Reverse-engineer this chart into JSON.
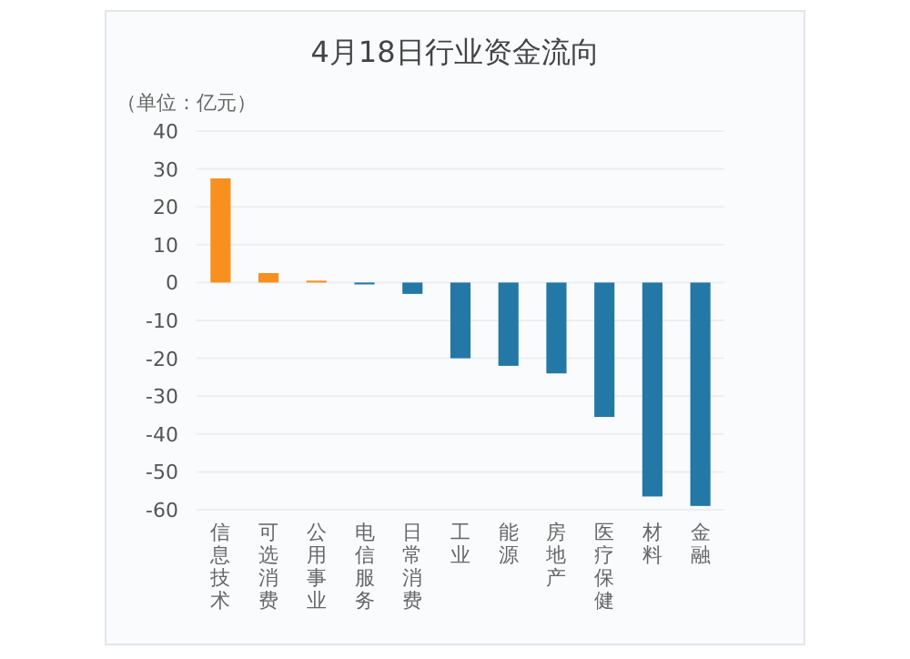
{
  "chart_data": {
    "type": "bar",
    "title": "4月18日行业资金流向",
    "annotations": [
      "（单位：亿元）"
    ],
    "categories": [
      "信息技术",
      "可选消费",
      "公用事业",
      "电信服务",
      "日常消费",
      "工业",
      "能源",
      "房地产",
      "医疗保健",
      "材料",
      "金融"
    ],
    "values": [
      27.5,
      2.5,
      0.5,
      -0.5,
      -3,
      -20,
      -22,
      -24,
      -35.5,
      -56.5,
      -59
    ],
    "colors": [
      "#f7901e",
      "#f7901e",
      "#f7901e",
      "#2378a6",
      "#2378a6",
      "#2378a6",
      "#2378a6",
      "#2378a6",
      "#2378a6",
      "#2378a6",
      "#2378a6"
    ],
    "ylim": [
      -60,
      40
    ],
    "yticks": [
      -60,
      -50,
      -40,
      -30,
      -20,
      -10,
      0,
      10,
      20,
      30,
      40
    ],
    "grid": "y"
  }
}
